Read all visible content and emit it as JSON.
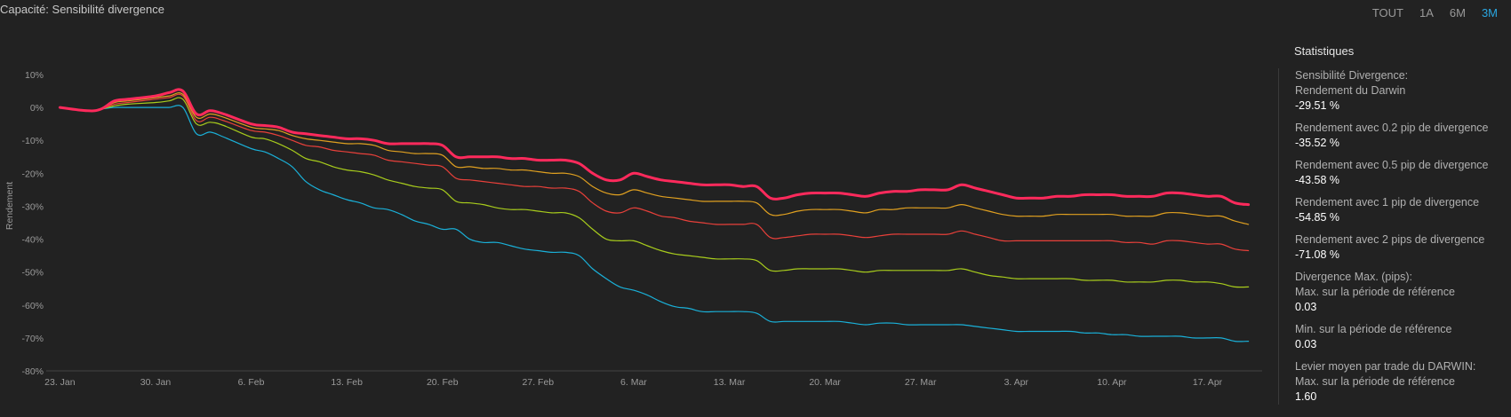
{
  "title": "Capacité: Sensibilité divergence",
  "ranges": [
    "TOUT",
    "1A",
    "6M",
    "3M"
  ],
  "active_range": "3M",
  "stats": {
    "title": "Statistiques",
    "items": [
      {
        "label": "Sensibilité Divergence:",
        "value": ""
      },
      {
        "label": "Rendement du Darwin",
        "value": "-29.51 %"
      },
      {
        "label": "Rendement avec 0.2 pip de divergence",
        "value": "-35.52 %"
      },
      {
        "label": "Rendement avec 0.5 pip de divergence",
        "value": "-43.58 %"
      },
      {
        "label": "Rendement avec 1 pip de divergence",
        "value": "-54.85 %"
      },
      {
        "label": "Rendement avec 2 pips de divergence",
        "value": "-71.08 %"
      },
      {
        "label": "Divergence Max. (pips):",
        "value": ""
      },
      {
        "label": "Max. sur la période de référence",
        "value": "0.03"
      },
      {
        "label": "Min. sur la période de référence",
        "value": "0.03"
      },
      {
        "label": "Levier moyen par trade du DARWIN:",
        "value": ""
      },
      {
        "label": "Max. sur la période de référence",
        "value": "1.60"
      }
    ]
  },
  "chart_data": {
    "type": "line",
    "title": "",
    "xlabel": "",
    "ylabel": "Rendement",
    "ylim": [
      -80,
      10
    ],
    "y_ticks": [
      "10%",
      "0%",
      "-10%",
      "-20%",
      "-30%",
      "-40%",
      "-50%",
      "-60%",
      "-70%",
      "-80%"
    ],
    "x_tick_labels": [
      "23. Jan",
      "30. Jan",
      "6. Feb",
      "13. Feb",
      "20. Feb",
      "27. Feb",
      "6. Mar",
      "13. Mar",
      "20. Mar",
      "27. Mar",
      "3. Apr",
      "10. Apr",
      "17. Apr"
    ],
    "x_day_offsets": [
      0,
      7,
      14,
      21,
      28,
      35,
      42,
      49,
      56,
      63,
      70,
      77,
      84
    ],
    "x_range": [
      -1,
      88
    ],
    "x": [
      0,
      2,
      3,
      4,
      5,
      7,
      8,
      9,
      10,
      11,
      12,
      14,
      15,
      16,
      17,
      18,
      19,
      20,
      21,
      22,
      23,
      24,
      25,
      26,
      27,
      28,
      29,
      30,
      31,
      32,
      33,
      34,
      35,
      36,
      37,
      38,
      39,
      40,
      41,
      42,
      43,
      44,
      45,
      46,
      47,
      48,
      49,
      50,
      51,
      52,
      53,
      54,
      55,
      56,
      57,
      58,
      59,
      60,
      61,
      62,
      63,
      64,
      65,
      66,
      67,
      68,
      69,
      70,
      71,
      72,
      73,
      74,
      75,
      76,
      77,
      78,
      79,
      80,
      81,
      82,
      83,
      84,
      85,
      86,
      87
    ],
    "series": [
      {
        "name": "",
        "color": "#ff2a5c",
        "width": 3,
        "values": [
          0,
          -1,
          -0.5,
          2,
          2.5,
          3.5,
          4.5,
          5,
          -2,
          -1,
          -2,
          -5,
          -5.5,
          -6,
          -7.5,
          -8,
          -8.5,
          -9,
          -9.5,
          -9.5,
          -10,
          -11,
          -11,
          -11,
          -11,
          -11.5,
          -15,
          -15,
          -15,
          -15,
          -15.5,
          -15.5,
          -16,
          -16,
          -16,
          -17,
          -20,
          -22,
          -22,
          -20,
          -21,
          -22,
          -22.5,
          -23,
          -23.5,
          -23.5,
          -23.5,
          -24,
          -24,
          -27.5,
          -27.5,
          -26.5,
          -26,
          -26,
          -26,
          -26.5,
          -27,
          -26,
          -25.5,
          -25.5,
          -25,
          -25,
          -25,
          -23.5,
          -24.5,
          -25.5,
          -26.5,
          -27.5,
          -27.5,
          -27.5,
          -27,
          -27,
          -26.5,
          -26.5,
          -26.5,
          -27,
          -27,
          -27,
          -26,
          -26,
          -26.5,
          -27,
          -27,
          -29,
          -29.5
        ]
      },
      {
        "name": "",
        "color": "#e0a020",
        "width": 1.2,
        "values": [
          0,
          -1,
          -0.5,
          1.5,
          2,
          3,
          3.5,
          4,
          -3,
          -2,
          -3,
          -6,
          -6.5,
          -7,
          -8.5,
          -9.5,
          -10,
          -10.5,
          -11,
          -11,
          -11.5,
          -13,
          -13.5,
          -14,
          -14,
          -14.5,
          -18,
          -18,
          -18.5,
          -18.5,
          -19,
          -19,
          -19.5,
          -20,
          -20,
          -21,
          -24,
          -26,
          -26.5,
          -25,
          -26,
          -27,
          -27.5,
          -28,
          -28.5,
          -28.5,
          -28.5,
          -28.5,
          -29,
          -32.5,
          -32.5,
          -31.5,
          -31,
          -31,
          -31,
          -31.5,
          -32,
          -31,
          -31,
          -30.5,
          -30.5,
          -30.5,
          -30.5,
          -29.5,
          -30.5,
          -31.5,
          -32.5,
          -33,
          -33,
          -33,
          -32.5,
          -32.5,
          -32.5,
          -32.5,
          -32.5,
          -33,
          -33,
          -33,
          -32,
          -32,
          -32.5,
          -33,
          -33,
          -34.5,
          -35.5
        ]
      },
      {
        "name": "",
        "color": "#e8403a",
        "width": 1.2,
        "values": [
          0,
          -1,
          -0.5,
          1,
          1.5,
          2.5,
          3,
          3.5,
          -4,
          -3,
          -4,
          -7,
          -7.5,
          -8.5,
          -10,
          -11.5,
          -12,
          -13,
          -13.5,
          -14,
          -14.5,
          -16,
          -16.5,
          -17,
          -17.5,
          -18,
          -21.5,
          -22,
          -22.5,
          -23,
          -23.5,
          -24,
          -24,
          -24.5,
          -24.5,
          -25.5,
          -29,
          -31.5,
          -32,
          -30.5,
          -31.5,
          -33,
          -33.5,
          -34.5,
          -35,
          -35.5,
          -35.5,
          -35.5,
          -35.5,
          -39.5,
          -39.5,
          -39,
          -38.5,
          -38.5,
          -38.5,
          -39,
          -39.5,
          -39,
          -38.5,
          -38.5,
          -38.5,
          -38.5,
          -38.5,
          -37.5,
          -38.5,
          -39.5,
          -40.5,
          -40.5,
          -40.5,
          -40.5,
          -40.5,
          -40.5,
          -40.5,
          -40.5,
          -40.5,
          -41,
          -41,
          -41.5,
          -40.5,
          -40.5,
          -41,
          -41.5,
          -41.5,
          -43,
          -43.5
        ]
      },
      {
        "name": "",
        "color": "#a8cc1c",
        "width": 1.2,
        "values": [
          0,
          -1,
          -0.5,
          0.5,
          1,
          1.5,
          2,
          2.5,
          -5,
          -4.5,
          -5.5,
          -9,
          -9.5,
          -11,
          -13,
          -15.5,
          -16.5,
          -18,
          -19,
          -19.5,
          -20.5,
          -22,
          -23,
          -24,
          -24.5,
          -25,
          -28.5,
          -29,
          -29.5,
          -30.5,
          -31,
          -31,
          -31.5,
          -32,
          -32,
          -33.5,
          -37,
          -40,
          -40.5,
          -40.5,
          -42,
          -43.5,
          -44.5,
          -45,
          -45.5,
          -46,
          -46,
          -46,
          -46.5,
          -49.5,
          -49.5,
          -49,
          -49,
          -49,
          -49,
          -49.5,
          -50,
          -49.5,
          -49.5,
          -49.5,
          -49.5,
          -49.5,
          -49.5,
          -49,
          -50,
          -51,
          -51.5,
          -52,
          -52,
          -52,
          -52,
          -52,
          -52.5,
          -52.5,
          -52.5,
          -53,
          -53,
          -53,
          -52.5,
          -52.5,
          -53,
          -53,
          -53.5,
          -54.5,
          -54.5
        ]
      },
      {
        "name": "",
        "color": "#1ab0d8",
        "width": 1.2,
        "values": [
          0,
          -1,
          -0.5,
          0,
          0,
          0,
          0,
          0,
          -8,
          -7.5,
          -9,
          -12.5,
          -13.5,
          -15.5,
          -18,
          -22.5,
          -25,
          -26.5,
          -28,
          -29,
          -30.5,
          -31,
          -32.5,
          -34.5,
          -35.5,
          -37,
          -37,
          -40,
          -41,
          -41,
          -42,
          -43,
          -43.5,
          -44,
          -44,
          -45,
          -49,
          -52,
          -54.5,
          -55.5,
          -57,
          -59,
          -60.5,
          -61,
          -62,
          -62,
          -62,
          -62,
          -62.5,
          -65,
          -65,
          -65,
          -65,
          -65,
          -65,
          -65.5,
          -66,
          -65.5,
          -65.5,
          -66,
          -66,
          -66,
          -66,
          -66,
          -66.5,
          -67,
          -67.5,
          -68,
          -68,
          -68,
          -68,
          -68,
          -68.5,
          -68.5,
          -69,
          -69,
          -69.5,
          -69.5,
          -69.5,
          -69.5,
          -70,
          -70,
          -70,
          -71,
          -71
        ]
      }
    ],
    "grid": false,
    "legend": "none"
  }
}
